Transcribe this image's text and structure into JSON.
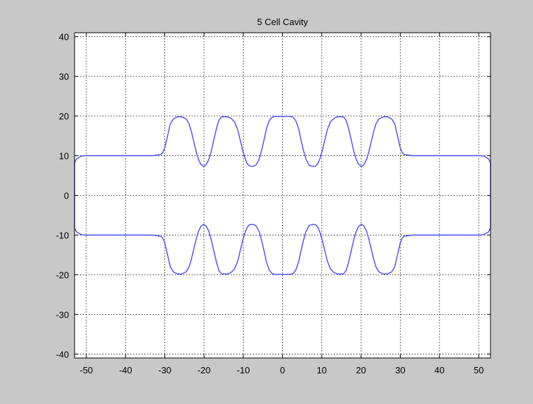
{
  "chart_data": {
    "type": "line",
    "title": "5 Cell Cavity",
    "xlabel": "",
    "ylabel": "",
    "xlim": [
      -53,
      53
    ],
    "ylim": [
      -41,
      41
    ],
    "xticks": [
      -50,
      -40,
      -30,
      -20,
      -10,
      0,
      10,
      20,
      30,
      40,
      50
    ],
    "yticks": [
      -40,
      -30,
      -20,
      -10,
      0,
      10,
      20,
      30,
      40
    ],
    "grid": true,
    "grid_style": "dotted",
    "legend": "none",
    "series": [
      {
        "color": "#4a4aff",
        "mirror_about_x_axis": true,
        "x": [
          -53,
          -52.5,
          -51.5,
          -50.5,
          -40,
          -33,
          -31,
          -30.5,
          -30,
          -29.3,
          -28.6,
          -27.8,
          -26.8,
          -25.7,
          -24.6,
          -23.8,
          -23.2,
          -22.6,
          -22,
          -21.4,
          -20.8,
          -20.1,
          -19.4,
          -18.8,
          -18.2,
          -17.5,
          -16.8,
          -16.2,
          -15.5,
          -14.8,
          -14.1,
          -13.2,
          -12.2,
          -11.4,
          -10.8,
          -10.2,
          -9.6,
          -9,
          -8.4,
          -7.6,
          -6.8,
          -6,
          -5.3,
          -4.7,
          -4.1,
          -3.4,
          -2.8,
          -2.1,
          -1.2,
          0,
          1.2,
          2.1,
          2.8,
          3.4,
          4.1,
          4.7,
          5.3,
          6,
          6.8,
          7.6,
          8.4,
          9,
          9.6,
          10.2,
          10.8,
          11.4,
          12.2,
          13.2,
          14.1,
          14.8,
          15.5,
          16.2,
          16.8,
          17.5,
          18.2,
          18.8,
          19.4,
          20.1,
          20.8,
          21.4,
          22,
          22.6,
          23.2,
          23.8,
          24.6,
          25.7,
          26.8,
          27.8,
          28.6,
          29.3,
          30,
          30.5,
          31,
          33,
          40,
          50.5,
          51.5,
          52.5,
          53
        ],
        "y": [
          8.2,
          9.2,
          9.8,
          10,
          10,
          10,
          10.3,
          10.8,
          12,
          15,
          18,
          19.3,
          19.8,
          19.8,
          19.3,
          18,
          16,
          13.5,
          11,
          9,
          7.8,
          7.3,
          7.8,
          9,
          11,
          14,
          17,
          19,
          19.8,
          19.8,
          19.8,
          19.5,
          18.5,
          16.5,
          14,
          11.5,
          9.5,
          8,
          7.4,
          7.3,
          7.6,
          9,
          11.5,
          14,
          16.8,
          18.8,
          19.6,
          19.9,
          19.9,
          19.9,
          19.9,
          19.9,
          19.6,
          18.8,
          16.8,
          14,
          11.5,
          9,
          7.6,
          7.3,
          7.4,
          8,
          9.5,
          11.5,
          14,
          16.5,
          18.5,
          19.5,
          19.8,
          19.8,
          19.8,
          19,
          17,
          14,
          11,
          9,
          7.8,
          7.3,
          7.8,
          9,
          11,
          13.5,
          16,
          18,
          19.3,
          19.8,
          19.8,
          19.3,
          18,
          15,
          12,
          10.8,
          10.3,
          10,
          10,
          10,
          9.8,
          9.2,
          8.2
        ]
      }
    ]
  }
}
